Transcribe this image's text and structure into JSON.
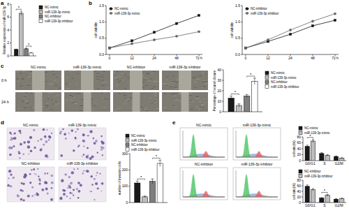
{
  "chart_data": [
    {
      "type": "bar",
      "panel": "a",
      "ylabel": "Relative expression of miR-139-3p",
      "categories": [
        null
      ],
      "series": [
        {
          "name": "NC-mimic",
          "color": "#1a1a1a",
          "values": [
            1
          ],
          "errors": [
            0.05
          ]
        },
        {
          "name": "miR-139-3p mimic",
          "color": "#bdbdbd",
          "values": [
            6.6
          ],
          "errors": [
            0.3
          ]
        },
        {
          "name": "NC-inhibitor",
          "color": "#7f7f7f",
          "values": [
            1.1
          ],
          "errors": [
            0.1
          ]
        },
        {
          "name": "miR-139-3p inhibitor",
          "color": "#ffffff",
          "values": [
            0.45
          ],
          "errors": [
            0.05
          ]
        }
      ],
      "ylim": [
        0,
        8
      ],
      "yticks": [
        0,
        2,
        4,
        6,
        8
      ],
      "legend": "right",
      "annotations": [
        {
          "text": "*",
          "series": [
            0,
            1
          ],
          "category": 0
        },
        {
          "text": "*",
          "series": [
            2,
            3
          ],
          "category": 0
        }
      ]
    },
    {
      "type": "line",
      "panel": "b",
      "ylabel": "cell viability",
      "categories": [
        "0",
        "12",
        "24",
        "48",
        "72 h"
      ],
      "series": [
        {
          "name": "NC-mimic",
          "color": "#111111",
          "marker": "square",
          "line_style": "solid",
          "values": [
            0.2,
            0.42,
            0.68,
            0.95,
            1.2
          ]
        },
        {
          "name": "miR-139-3p mimic",
          "color": "#666666",
          "marker": "circle",
          "line_style": "solid",
          "values": [
            0.2,
            0.33,
            0.45,
            0.56,
            0.7
          ]
        }
      ],
      "ylim": [
        0,
        1.5
      ],
      "yticks": [
        {
          "value": 0,
          "label": "0.0"
        },
        0.5,
        {
          "value": 1,
          "label": "1.0"
        },
        1.5
      ],
      "legend": "top-left"
    },
    {
      "type": "line",
      "ylabel": "cell viability",
      "categories": [
        "0",
        "12",
        "24",
        "48",
        "72 h"
      ],
      "series": [
        {
          "name": "NC-inhibitor",
          "color": "#111111",
          "marker": "square",
          "line_style": "solid",
          "values": [
            0.2,
            0.4,
            0.62,
            0.88,
            1.05
          ]
        },
        {
          "name": "miR-139-3p inhibitor",
          "color": "#666666",
          "marker": "circle",
          "line_style": "solid",
          "values": [
            0.2,
            0.45,
            0.75,
            1.02,
            1.25
          ]
        }
      ],
      "ylim": [
        0,
        1.5
      ],
      "yticks": [
        {
          "value": 0,
          "label": "0.0"
        },
        0.5,
        {
          "value": 1,
          "label": "1.0"
        },
        1.5
      ],
      "legend": "top-left"
    },
    {
      "type": "bar",
      "ylabel": "Percentage of wound closure",
      "categories": [
        null
      ],
      "series": [
        {
          "name": "NC-mimic",
          "color": "#1a1a1a",
          "values": [
            13
          ],
          "errors": [
            2
          ]
        },
        {
          "name": "miR-139-3p mimic",
          "color": "#bdbdbd",
          "values": [
            6
          ],
          "errors": [
            1.5
          ]
        },
        {
          "name": "NC-inhibitor",
          "color": "#7f7f7f",
          "values": [
            15
          ],
          "errors": [
            1.5
          ]
        },
        {
          "name": "miR-139-3p inhibitor",
          "color": "#ffffff",
          "values": [
            29
          ],
          "errors": [
            3
          ]
        }
      ],
      "ylim": [
        0,
        40
      ],
      "yticks": [
        0,
        10,
        20,
        30,
        40
      ],
      "legend": "right",
      "annotations": [
        {
          "text": "*",
          "series": [
            0,
            1
          ],
          "category": 0
        },
        {
          "text": "*",
          "series": [
            2,
            3
          ],
          "category": 0
        }
      ]
    },
    {
      "type": "bar",
      "ylabel": "number of invasion cells",
      "categories": [
        null
      ],
      "series": [
        {
          "name": "NC-mimic",
          "color": "#1a1a1a",
          "values": [
            120
          ],
          "errors": [
            12
          ]
        },
        {
          "name": "miR-139-3p mimic",
          "color": "#bdbdbd",
          "values": [
            35
          ],
          "errors": [
            5
          ]
        },
        {
          "name": "NC-inhibitor",
          "color": "#7f7f7f",
          "values": [
            130
          ],
          "errors": [
            15
          ]
        },
        {
          "name": "miR-139-3p inhibitor",
          "color": "#ffffff",
          "values": [
            240
          ],
          "errors": [
            20
          ]
        }
      ],
      "ylim": [
        0,
        300
      ],
      "yticks": [
        0,
        100,
        200,
        300
      ],
      "legend": "top",
      "annotations": [
        {
          "text": "*",
          "series": [
            0,
            1
          ],
          "category": 0
        },
        {
          "text": "*",
          "series": [
            2,
            3
          ],
          "category": 0
        }
      ]
    },
    {
      "type": "bar",
      "ylabel": "cell ratio(%)",
      "categories": [
        "G0/G1",
        "S",
        "G2/M"
      ],
      "series": [
        {
          "name": "NC-mimic",
          "color": "#1a1a1a",
          "values": [
            48,
            24,
            14
          ],
          "errors": [
            4,
            3,
            2
          ]
        },
        {
          "name": "miR-139-3p mimic",
          "color": "#bdbdbd",
          "values": [
            66,
            18,
            8
          ],
          "errors": [
            5,
            2,
            2
          ]
        }
      ],
      "ylim": [
        0,
        80
      ],
      "yticks": [
        0,
        20,
        40,
        60,
        80
      ],
      "legend": "top",
      "annotations": [
        {
          "text": "*",
          "series": [
            0,
            1
          ],
          "category": 0
        }
      ]
    },
    {
      "type": "bar",
      "ylabel": "cell ratio(%)",
      "categories": [
        "G0/G1",
        "S",
        "G2/M"
      ],
      "series": [
        {
          "name": "NC-inhibitor",
          "color": "#1a1a1a",
          "values": [
            58,
            16,
            12
          ],
          "errors": [
            5,
            2,
            2
          ]
        },
        {
          "name": "miR-139-3p inhibitor",
          "color": "#bdbdbd",
          "values": [
            46,
            26,
            14
          ],
          "errors": [
            4,
            3,
            2
          ]
        }
      ],
      "ylim": [
        0,
        80
      ],
      "yticks": [
        0,
        20,
        40,
        60,
        80
      ],
      "legend": "top",
      "annotations": [
        {
          "text": "*",
          "series": [
            0,
            1
          ],
          "category": 1
        }
      ]
    }
  ],
  "image_panels": [
    {
      "panel": "c",
      "kind": "wound",
      "columns": [
        "NC-mimic",
        "miR-139-3p mimic",
        "NC-inhibitor",
        "miR-139-3p inhibitor"
      ],
      "rows": [
        "0 h",
        "24 h"
      ]
    },
    {
      "panel": "d",
      "kind": "transwell",
      "labels": [
        "NC-mimic",
        "miR-139-3p mimic",
        "NC-inhibitor",
        "miR-139-3p inhibitor"
      ]
    },
    {
      "panel": "e",
      "kind": "flow",
      "labels": [
        "NC-mimic",
        "miR-139-3p mimic",
        "NC-inhibitor",
        "miR-139-3p inhibitor"
      ]
    }
  ]
}
